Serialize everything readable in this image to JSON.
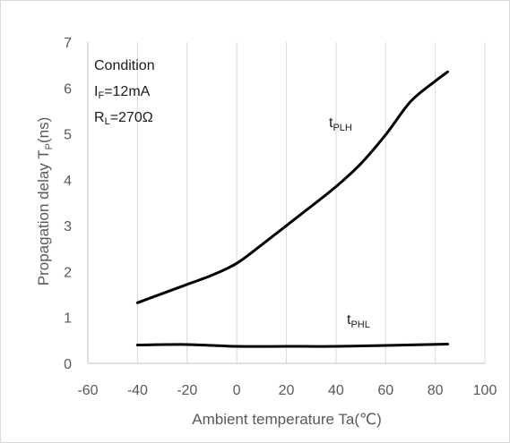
{
  "chart_data": {
    "type": "line",
    "xlabel": "Ambient temperature Ta(℃)",
    "ylabel_main": "Propagation delay  T",
    "ylabel_sub": "P",
    "ylabel_tail": "(ns)",
    "xlim": [
      -60,
      100
    ],
    "ylim": [
      0,
      7
    ],
    "xticks": [
      "-60",
      "-40",
      "-20",
      "0",
      "20",
      "40",
      "60",
      "80",
      "100"
    ],
    "yticks": [
      "0",
      "1",
      "2",
      "3",
      "4",
      "5",
      "6",
      "7"
    ],
    "grid": "vertical",
    "series": [
      {
        "name_main": "t",
        "name_sub": "PLH",
        "x": [
          -40,
          -30,
          -20,
          -10,
          0,
          10,
          20,
          30,
          40,
          50,
          60,
          70,
          80,
          85
        ],
        "y": [
          1.32,
          1.52,
          1.72,
          1.92,
          2.18,
          2.58,
          3.0,
          3.42,
          3.85,
          4.35,
          4.98,
          5.7,
          6.15,
          6.35
        ]
      },
      {
        "name_main": "t",
        "name_sub": "PHL",
        "x": [
          -40,
          -20,
          0,
          20,
          40,
          60,
          85
        ],
        "y": [
          0.4,
          0.41,
          0.37,
          0.37,
          0.37,
          0.39,
          0.42
        ]
      }
    ],
    "condition": {
      "title": "Condition",
      "line1_main": "I",
      "line1_sub": "F",
      "line1_tail": "=12mA",
      "line2_main": "R",
      "line2_sub": "L",
      "line2_tail": "=270Ω"
    },
    "style": {
      "line_color": "#000000",
      "grid_color": "#d9d9d9",
      "axis_color": "#bfbfbf"
    }
  }
}
